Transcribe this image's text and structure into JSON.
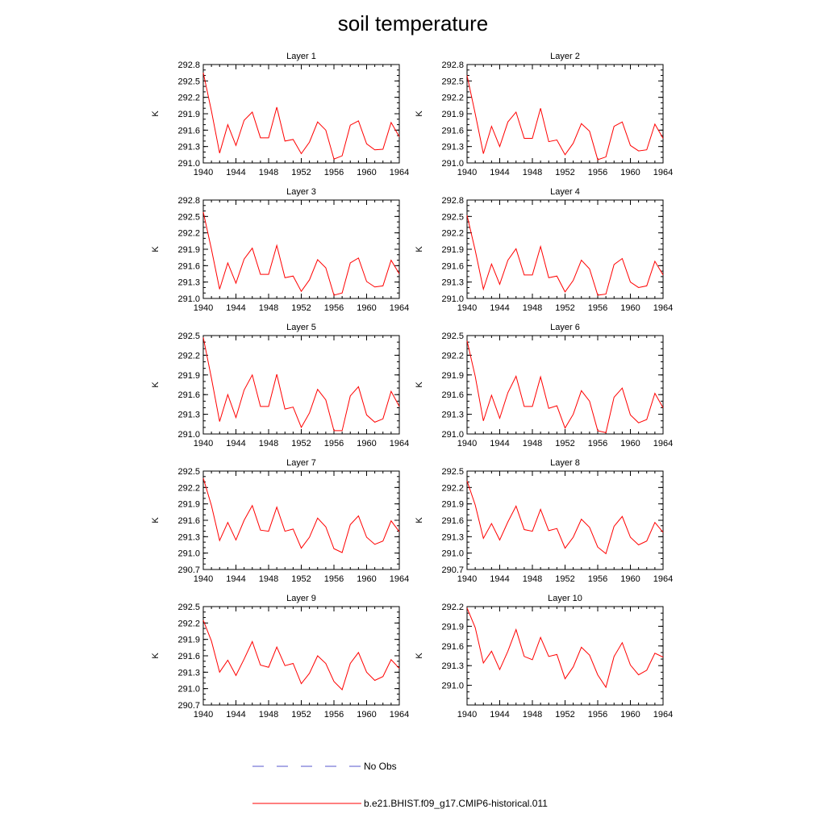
{
  "figure": {
    "title": "soil temperature",
    "x_range": [
      1940,
      1964
    ],
    "x_ticks": [
      1940,
      1944,
      1948,
      1952,
      1956,
      1960,
      1964
    ],
    "legend": [
      {
        "label": "No Obs",
        "color": "#5555cc",
        "style": "dashed"
      },
      {
        "label": "b.e21.BHIST.f09_g17.CMIP6-historical.011",
        "color": "#ff0000",
        "style": "solid"
      }
    ]
  },
  "chart_data": [
    {
      "type": "line",
      "title": "Layer 1",
      "ylabel": "K",
      "ylim": [
        291.0,
        292.8
      ],
      "yticks": [
        "291.0",
        "291.3",
        "291.6",
        "291.9",
        "292.2",
        "292.5",
        "292.8"
      ],
      "x": [
        1940,
        1941,
        1942,
        1943,
        1944,
        1945,
        1946,
        1947,
        1948,
        1949,
        1950,
        1951,
        1952,
        1953,
        1954,
        1955,
        1956,
        1957,
        1958,
        1959,
        1960,
        1961,
        1962,
        1963,
        1964
      ],
      "series": [
        {
          "values": [
            292.65,
            291.95,
            291.18,
            291.7,
            291.32,
            291.78,
            291.93,
            291.46,
            291.46,
            292.02,
            291.4,
            291.43,
            291.17,
            291.38,
            291.75,
            291.6,
            291.07,
            291.13,
            291.69,
            291.77,
            291.35,
            291.24,
            291.25,
            291.74,
            291.48
          ],
          "color": "#ff0000"
        }
      ]
    },
    {
      "type": "line",
      "title": "Layer 2",
      "ylabel": "K",
      "ylim": [
        291.0,
        292.8
      ],
      "yticks": [
        "291.0",
        "291.3",
        "291.6",
        "291.9",
        "292.2",
        "292.5",
        "292.8"
      ],
      "x": [
        1940,
        1941,
        1942,
        1943,
        1944,
        1945,
        1946,
        1947,
        1948,
        1949,
        1950,
        1951,
        1952,
        1953,
        1954,
        1955,
        1956,
        1957,
        1958,
        1959,
        1960,
        1961,
        1962,
        1963,
        1964
      ],
      "series": [
        {
          "values": [
            292.6,
            291.9,
            291.17,
            291.67,
            291.3,
            291.75,
            291.93,
            291.45,
            291.45,
            292.0,
            291.39,
            291.42,
            291.15,
            291.36,
            291.72,
            291.58,
            291.06,
            291.11,
            291.67,
            291.75,
            291.32,
            291.22,
            291.24,
            291.71,
            291.45
          ],
          "color": "#ff0000"
        }
      ]
    },
    {
      "type": "line",
      "title": "Layer 3",
      "ylabel": "K",
      "ylim": [
        291.0,
        292.8
      ],
      "yticks": [
        "291.0",
        "291.3",
        "291.6",
        "291.9",
        "292.2",
        "292.5",
        "292.8"
      ],
      "x": [
        1940,
        1941,
        1942,
        1943,
        1944,
        1945,
        1946,
        1947,
        1948,
        1949,
        1950,
        1951,
        1952,
        1953,
        1954,
        1955,
        1956,
        1957,
        1958,
        1959,
        1960,
        1961,
        1962,
        1963,
        1964
      ],
      "series": [
        {
          "values": [
            292.58,
            291.9,
            291.17,
            291.65,
            291.28,
            291.72,
            291.92,
            291.44,
            291.44,
            291.97,
            291.38,
            291.41,
            291.13,
            291.34,
            291.71,
            291.56,
            291.06,
            291.1,
            291.65,
            291.74,
            291.31,
            291.21,
            291.23,
            291.7,
            291.45
          ],
          "color": "#ff0000"
        }
      ]
    },
    {
      "type": "line",
      "title": "Layer 4",
      "ylabel": "K",
      "ylim": [
        291.0,
        292.8
      ],
      "yticks": [
        "291.0",
        "291.3",
        "291.6",
        "291.9",
        "292.2",
        "292.5",
        "292.8"
      ],
      "x": [
        1940,
        1941,
        1942,
        1943,
        1944,
        1945,
        1946,
        1947,
        1948,
        1949,
        1950,
        1951,
        1952,
        1953,
        1954,
        1955,
        1956,
        1957,
        1958,
        1959,
        1960,
        1961,
        1962,
        1963,
        1964
      ],
      "series": [
        {
          "values": [
            292.52,
            291.88,
            291.17,
            291.63,
            291.26,
            291.7,
            291.91,
            291.43,
            291.43,
            291.95,
            291.38,
            291.41,
            291.12,
            291.33,
            291.7,
            291.54,
            291.06,
            291.08,
            291.62,
            291.73,
            291.3,
            291.2,
            291.23,
            291.68,
            291.43
          ],
          "color": "#ff0000"
        }
      ]
    },
    {
      "type": "line",
      "title": "Layer 5",
      "ylabel": "K",
      "ylim": [
        291.0,
        292.5
      ],
      "yticks": [
        "291.0",
        "291.3",
        "291.6",
        "291.9",
        "292.2",
        "292.5"
      ],
      "x": [
        1940,
        1941,
        1942,
        1943,
        1944,
        1945,
        1946,
        1947,
        1948,
        1949,
        1950,
        1951,
        1952,
        1953,
        1954,
        1955,
        1956,
        1957,
        1958,
        1959,
        1960,
        1961,
        1962,
        1963,
        1964
      ],
      "series": [
        {
          "values": [
            292.47,
            291.85,
            291.19,
            291.6,
            291.25,
            291.67,
            291.9,
            291.42,
            291.42,
            291.91,
            291.38,
            291.41,
            291.1,
            291.32,
            291.68,
            291.52,
            291.05,
            291.05,
            291.58,
            291.72,
            291.29,
            291.18,
            291.23,
            291.65,
            291.42
          ],
          "color": "#ff0000"
        }
      ]
    },
    {
      "type": "line",
      "title": "Layer 6",
      "ylabel": "K",
      "ylim": [
        291.0,
        292.5
      ],
      "yticks": [
        "291.0",
        "291.3",
        "291.6",
        "291.9",
        "292.2",
        "292.5"
      ],
      "x": [
        1940,
        1941,
        1942,
        1943,
        1944,
        1945,
        1946,
        1947,
        1948,
        1949,
        1950,
        1951,
        1952,
        1953,
        1954,
        1955,
        1956,
        1957,
        1958,
        1959,
        1960,
        1961,
        1962,
        1963,
        1964
      ],
      "series": [
        {
          "values": [
            292.42,
            291.88,
            291.2,
            291.59,
            291.24,
            291.63,
            291.88,
            291.42,
            291.42,
            291.87,
            291.39,
            291.43,
            291.09,
            291.3,
            291.66,
            291.5,
            291.05,
            291.02,
            291.56,
            291.7,
            291.29,
            291.17,
            291.22,
            291.62,
            291.4
          ],
          "color": "#ff0000"
        }
      ]
    },
    {
      "type": "line",
      "title": "Layer 7",
      "ylabel": "K",
      "ylim": [
        290.7,
        292.5
      ],
      "yticks": [
        "290.7",
        "291.0",
        "291.3",
        "291.6",
        "291.9",
        "292.2",
        "292.5"
      ],
      "x": [
        1940,
        1941,
        1942,
        1943,
        1944,
        1945,
        1946,
        1947,
        1948,
        1949,
        1950,
        1951,
        1952,
        1953,
        1954,
        1955,
        1956,
        1957,
        1958,
        1959,
        1960,
        1961,
        1962,
        1963,
        1964
      ],
      "series": [
        {
          "values": [
            292.37,
            291.87,
            291.23,
            291.56,
            291.24,
            291.6,
            291.87,
            291.42,
            291.4,
            291.84,
            291.4,
            291.44,
            291.09,
            291.29,
            291.64,
            291.48,
            291.08,
            291.01,
            291.52,
            291.68,
            291.29,
            291.16,
            291.22,
            291.59,
            291.39
          ],
          "color": "#ff0000"
        }
      ]
    },
    {
      "type": "line",
      "title": "Layer 8",
      "ylabel": "K",
      "ylim": [
        290.7,
        292.5
      ],
      "yticks": [
        "290.7",
        "291.0",
        "291.3",
        "291.6",
        "291.9",
        "292.2",
        "292.5"
      ],
      "x": [
        1940,
        1941,
        1942,
        1943,
        1944,
        1945,
        1946,
        1947,
        1948,
        1949,
        1950,
        1951,
        1952,
        1953,
        1954,
        1955,
        1956,
        1957,
        1958,
        1959,
        1960,
        1961,
        1962,
        1963,
        1964
      ],
      "series": [
        {
          "values": [
            292.32,
            291.88,
            291.27,
            291.54,
            291.24,
            291.57,
            291.86,
            291.43,
            291.4,
            291.8,
            291.41,
            291.45,
            291.09,
            291.29,
            291.62,
            291.47,
            291.11,
            290.99,
            291.49,
            291.67,
            291.29,
            291.15,
            291.22,
            291.56,
            291.38
          ],
          "color": "#ff0000"
        }
      ]
    },
    {
      "type": "line",
      "title": "Layer 9",
      "ylabel": "K",
      "ylim": [
        290.7,
        292.5
      ],
      "yticks": [
        "290.7",
        "291.0",
        "291.3",
        "291.6",
        "291.9",
        "292.2",
        "292.5"
      ],
      "x": [
        1940,
        1941,
        1942,
        1943,
        1944,
        1945,
        1946,
        1947,
        1948,
        1949,
        1950,
        1951,
        1952,
        1953,
        1954,
        1955,
        1956,
        1957,
        1958,
        1959,
        1960,
        1961,
        1962,
        1963,
        1964
      ],
      "series": [
        {
          "values": [
            292.25,
            291.87,
            291.3,
            291.52,
            291.24,
            291.54,
            291.86,
            291.43,
            291.39,
            291.76,
            291.42,
            291.46,
            291.09,
            291.28,
            291.6,
            291.46,
            291.13,
            290.98,
            291.46,
            291.66,
            291.3,
            291.15,
            291.22,
            291.53,
            291.37
          ],
          "color": "#ff0000"
        }
      ]
    },
    {
      "type": "line",
      "title": "Layer 10",
      "ylabel": "K",
      "ylim": [
        290.7,
        292.2
      ],
      "yticks": [
        "291.0",
        "291.3",
        "291.6",
        "291.9",
        "292.2"
      ],
      "x": [
        1940,
        1941,
        1942,
        1943,
        1944,
        1945,
        1946,
        1947,
        1948,
        1949,
        1950,
        1951,
        1952,
        1953,
        1954,
        1955,
        1956,
        1957,
        1958,
        1959,
        1960,
        1961,
        1962,
        1963,
        1964
      ],
      "series": [
        {
          "values": [
            292.18,
            291.88,
            291.34,
            291.52,
            291.24,
            291.52,
            291.85,
            291.44,
            291.39,
            291.73,
            291.44,
            291.47,
            291.1,
            291.28,
            291.58,
            291.46,
            291.16,
            290.97,
            291.44,
            291.65,
            291.31,
            291.16,
            291.23,
            291.49,
            291.43
          ],
          "color": "#ff0000"
        }
      ]
    }
  ]
}
